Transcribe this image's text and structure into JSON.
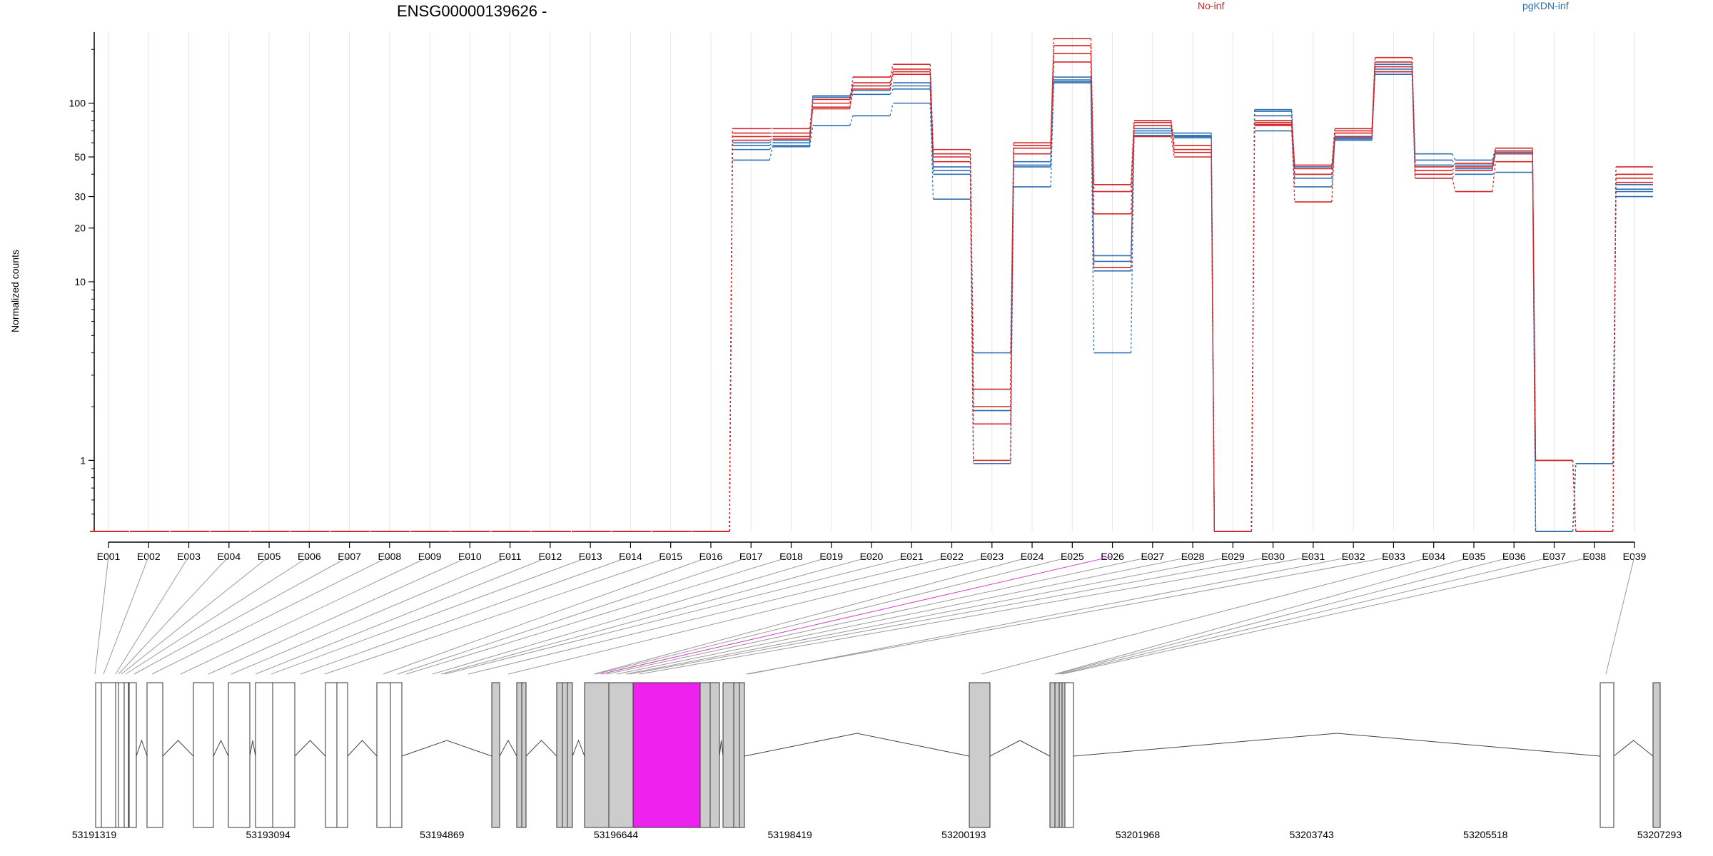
{
  "colors": {
    "group_a": "#d62728",
    "group_b": "#2f6fb3",
    "highlight_exon": "#ee22ee",
    "highlight_link": "#cc44cc",
    "grey_exon": "#cccccc",
    "axis": "#000000",
    "grid": "#e6e6e6",
    "link": "#9a9a9a"
  },
  "chart_data": {
    "type": "line",
    "title": "ENSG00000139626 -",
    "ylabel": "Normalized counts",
    "xlabel": "",
    "y_scale": "log",
    "ylim": [
      0.4,
      250
    ],
    "y_ticks": [
      1,
      10,
      20,
      30,
      50,
      100
    ],
    "grid": "vertical-light",
    "legend": "top",
    "legend_entries": [
      {
        "label": "No-inf",
        "color": "#d62728"
      },
      {
        "label": "pgKDN-inf",
        "color": "#2f6fb3"
      }
    ],
    "categories": [
      "E001",
      "E002",
      "E003",
      "E004",
      "E005",
      "E006",
      "E007",
      "E008",
      "E009",
      "E010",
      "E011",
      "E012",
      "E013",
      "E014",
      "E015",
      "E016",
      "E017",
      "E018",
      "E019",
      "E020",
      "E021",
      "E022",
      "E023",
      "E024",
      "E025",
      "E026",
      "E027",
      "E028",
      "E029",
      "E030",
      "E031",
      "E032",
      "E033",
      "E034",
      "E035",
      "E036",
      "E037",
      "E038",
      "E039"
    ],
    "series": [
      {
        "group": "No-inf",
        "values": [
          0.4,
          0.4,
          0.4,
          0.4,
          0.4,
          0.4,
          0.4,
          0.4,
          0.4,
          0.4,
          0.4,
          0.4,
          0.4,
          0.4,
          0.4,
          0.4,
          72,
          72,
          105,
          140,
          165,
          55,
          2.5,
          60,
          230,
          35,
          80,
          58,
          0.4,
          80,
          45,
          72,
          180,
          44,
          46,
          56,
          1.0,
          0.4,
          44
        ]
      },
      {
        "group": "No-inf",
        "values": [
          0.4,
          0.4,
          0.4,
          0.4,
          0.4,
          0.4,
          0.4,
          0.4,
          0.4,
          0.4,
          0.4,
          0.4,
          0.4,
          0.4,
          0.4,
          0.4,
          68,
          68,
          100,
          130,
          155,
          52,
          2.0,
          58,
          210,
          32,
          78,
          55,
          0.4,
          78,
          43,
          70,
          170,
          42,
          44,
          54,
          1.0,
          0.4,
          40
        ]
      },
      {
        "group": "No-inf",
        "values": [
          0.4,
          0.4,
          0.4,
          0.4,
          0.4,
          0.4,
          0.4,
          0.4,
          0.4,
          0.4,
          0.4,
          0.4,
          0.4,
          0.4,
          0.4,
          0.4,
          65,
          65,
          95,
          125,
          150,
          50,
          1.0,
          56,
          190,
          24,
          75,
          53,
          0.4,
          76,
          40,
          68,
          160,
          40,
          42,
          52,
          1.0,
          0.4,
          38
        ]
      },
      {
        "group": "No-inf",
        "values": [
          0.4,
          0.4,
          0.4,
          0.4,
          0.4,
          0.4,
          0.4,
          0.4,
          0.4,
          0.4,
          0.4,
          0.4,
          0.4,
          0.4,
          0.4,
          0.4,
          62,
          63,
          93,
          120,
          145,
          47,
          1.6,
          52,
          170,
          12,
          65,
          50,
          0.4,
          75,
          28,
          65,
          150,
          38,
          32,
          47,
          1.0,
          0.4,
          36
        ]
      },
      {
        "group": "pgKDN-inf",
        "values": [
          0.4,
          0.4,
          0.4,
          0.4,
          0.4,
          0.4,
          0.4,
          0.4,
          0.4,
          0.4,
          0.4,
          0.4,
          0.4,
          0.4,
          0.4,
          0.4,
          60,
          62,
          110,
          125,
          130,
          44,
          4.0,
          47,
          140,
          14,
          72,
          68,
          0.4,
          92,
          44,
          65,
          165,
          52,
          48,
          56,
          0.4,
          0.96,
          35
        ]
      },
      {
        "group": "pgKDN-inf",
        "values": [
          0.4,
          0.4,
          0.4,
          0.4,
          0.4,
          0.4,
          0.4,
          0.4,
          0.4,
          0.4,
          0.4,
          0.4,
          0.4,
          0.4,
          0.4,
          0.4,
          58,
          60,
          108,
          118,
          125,
          42,
          2.5,
          45,
          135,
          13,
          70,
          66,
          0.4,
          90,
          40,
          64,
          155,
          48,
          45,
          54,
          0.4,
          0.96,
          33
        ]
      },
      {
        "group": "pgKDN-inf",
        "values": [
          0.4,
          0.4,
          0.4,
          0.4,
          0.4,
          0.4,
          0.4,
          0.4,
          0.4,
          0.4,
          0.4,
          0.4,
          0.4,
          0.4,
          0.4,
          0.4,
          55,
          58,
          105,
          112,
          120,
          40,
          1.9,
          44,
          132,
          11.5,
          68,
          65,
          0.4,
          85,
          38,
          63,
          150,
          45,
          43,
          53,
          0.4,
          0.96,
          32
        ]
      },
      {
        "group": "pgKDN-inf",
        "values": [
          0.4,
          0.4,
          0.4,
          0.4,
          0.4,
          0.4,
          0.4,
          0.4,
          0.4,
          0.4,
          0.4,
          0.4,
          0.4,
          0.4,
          0.4,
          0.4,
          48,
          57,
          75,
          85,
          100,
          29,
          0.96,
          34,
          130,
          4.0,
          66,
          64,
          0.4,
          70,
          34,
          62,
          145,
          38,
          40,
          41,
          0.4,
          0.96,
          30
        ]
      }
    ],
    "gene_track": {
      "coordinate_labels": [
        "53191319",
        "53193094",
        "53194869",
        "53196644",
        "53198419",
        "53200193",
        "53201968",
        "53203743",
        "53205518",
        "53207293"
      ]
    }
  }
}
